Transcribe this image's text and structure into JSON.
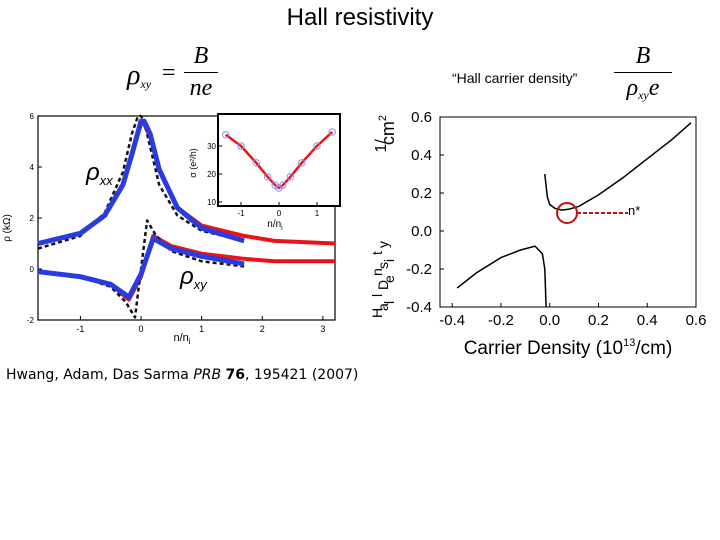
{
  "title": "Hall resistivity",
  "formula_left": {
    "lhs": "ρ",
    "lhs_sub": "xy",
    "equals": "=",
    "num": "B",
    "den": "ne"
  },
  "quote": "“Hall carrier density”",
  "formula_right": {
    "num": "B",
    "den": "ρ",
    "den_sub": "xy",
    "den_tail": "e"
  },
  "citation": {
    "authors": "Hwang, Adam, Das Sarma ",
    "journal": "PRB",
    "volume": "76",
    "rest": ", 195421 (2007)"
  },
  "colors": {
    "red": "#e8141a",
    "blue": "#2a3be0",
    "dark_red": "#c01010"
  },
  "left_chart": {
    "type": "line",
    "xlabel": "n/n",
    "xlabel_sub": "i",
    "ylabel": "ρ (kΩ)",
    "xlim": [
      -1.7,
      3.2
    ],
    "ylim": [
      -2,
      6
    ],
    "x_ticks": [
      "-1",
      "0",
      "1",
      "2",
      "3"
    ],
    "y_ticks": [
      "-2",
      "0",
      "2",
      "4",
      "6"
    ],
    "label_rxx": "ρ",
    "label_rxx_sub": "xx",
    "label_rxy": "ρ",
    "label_rxy_sub": "xy",
    "series": [
      {
        "name": "rho_xx theory (dashed)",
        "x": [
          -1.7,
          -1.0,
          -0.6,
          -0.3,
          -0.15,
          -0.05,
          0.0,
          0.05,
          0.15,
          0.3,
          0.6,
          1.0,
          1.7
        ],
        "y": [
          0.8,
          1.3,
          2.2,
          3.8,
          5.3,
          6.0,
          6.0,
          5.8,
          4.8,
          3.3,
          2.1,
          1.5,
          1.1
        ]
      },
      {
        "name": "rho_xx (red)",
        "x": [
          -1.7,
          -1.0,
          -0.6,
          -0.3,
          -0.15,
          0.0,
          0.05,
          0.15,
          0.3,
          0.6,
          1.0,
          1.7,
          2.2,
          3.2
        ],
        "y": [
          1.0,
          1.4,
          2.1,
          3.3,
          4.5,
          5.7,
          5.7,
          5.2,
          3.9,
          2.4,
          1.7,
          1.3,
          1.1,
          1.0
        ]
      },
      {
        "name": "rho_xx (blue)",
        "x": [
          -1.7,
          -1.0,
          -0.6,
          -0.3,
          -0.15,
          0.0,
          0.05,
          0.15,
          0.3,
          0.6,
          1.0,
          1.7
        ],
        "y": [
          1.0,
          1.4,
          2.1,
          3.3,
          4.5,
          5.8,
          5.8,
          5.3,
          3.9,
          2.4,
          1.6,
          1.1
        ]
      },
      {
        "name": "rho_xy theory (dashed)",
        "x": [
          -1.7,
          -1.0,
          -0.5,
          -0.25,
          -0.1,
          0.0,
          0.1,
          0.25,
          0.5,
          1.0,
          1.7
        ],
        "y": [
          -0.1,
          -0.3,
          -0.7,
          -1.3,
          -1.9,
          0.0,
          1.9,
          1.3,
          0.7,
          0.3,
          0.1
        ]
      },
      {
        "name": "rho_xy (red)",
        "x": [
          -1.7,
          -1.0,
          -0.5,
          -0.2,
          0.0,
          0.2,
          0.5,
          1.0,
          1.7,
          2.2,
          3.2
        ],
        "y": [
          -0.1,
          -0.3,
          -0.6,
          -1.2,
          -0.3,
          1.3,
          0.9,
          0.6,
          0.4,
          0.3,
          0.3
        ]
      },
      {
        "name": "rho_xy (blue)",
        "x": [
          -1.7,
          -1.0,
          -0.5,
          -0.2,
          0.0,
          0.2,
          0.5,
          1.0,
          1.7
        ],
        "y": [
          -0.1,
          -0.3,
          -0.6,
          -1.1,
          -0.2,
          1.2,
          0.8,
          0.5,
          0.2
        ]
      }
    ],
    "inset": {
      "xlabel": "n/n",
      "xlabel_sub": "i",
      "ylabel": "σ (e²/h)",
      "xlim": [
        -1.5,
        1.5
      ],
      "ylim": [
        10,
        40
      ],
      "x_ticks": [
        "-1",
        "0",
        "1"
      ],
      "y_ticks": [
        "10",
        "20",
        "30"
      ],
      "x": [
        -1.4,
        -1.0,
        -0.6,
        -0.3,
        -0.1,
        0.0,
        0.1,
        0.3,
        0.6,
        1.0,
        1.4
      ],
      "y": [
        34,
        30,
        24,
        19,
        16,
        15,
        16,
        19,
        24,
        30,
        35
      ]
    }
  },
  "right_chart": {
    "type": "line",
    "xlabel": "Carrier Density (10",
    "xlabel_sup": "13",
    "xlabel_tail": "/cm)",
    "ylabel_top": "1/",
    "ylabel_mid": "cm",
    "ylabel_sup": "2",
    "ylabel_letters": [
      "H",
      "a",
      "l",
      "l",
      "D",
      "e",
      "n",
      "s",
      "i",
      "t",
      "y"
    ],
    "xlim": [
      -0.45,
      0.6
    ],
    "ylim": [
      -0.4,
      0.6
    ],
    "x_ticks": [
      "-0.4",
      "-0.2",
      "0.0",
      "0.2",
      "0.4",
      "0.6"
    ],
    "y_ticks": [
      "-0.4",
      "-0.2",
      "0.0",
      "0.2",
      "0.4",
      "0.6"
    ],
    "annotation": "n*",
    "series": [
      {
        "name": "positive branch",
        "x": [
          -0.02,
          -0.01,
          0.0,
          0.02,
          0.05,
          0.08,
          0.12,
          0.2,
          0.3,
          0.4,
          0.5,
          0.58
        ],
        "y": [
          0.3,
          0.18,
          0.14,
          0.12,
          0.11,
          0.115,
          0.13,
          0.19,
          0.28,
          0.38,
          0.48,
          0.57
        ]
      },
      {
        "name": "negative branch",
        "x": [
          -0.38,
          -0.3,
          -0.2,
          -0.12,
          -0.06,
          -0.03,
          -0.02,
          -0.015
        ],
        "y": [
          -0.3,
          -0.22,
          -0.14,
          -0.1,
          -0.08,
          -0.12,
          -0.2,
          -0.4
        ]
      }
    ]
  }
}
